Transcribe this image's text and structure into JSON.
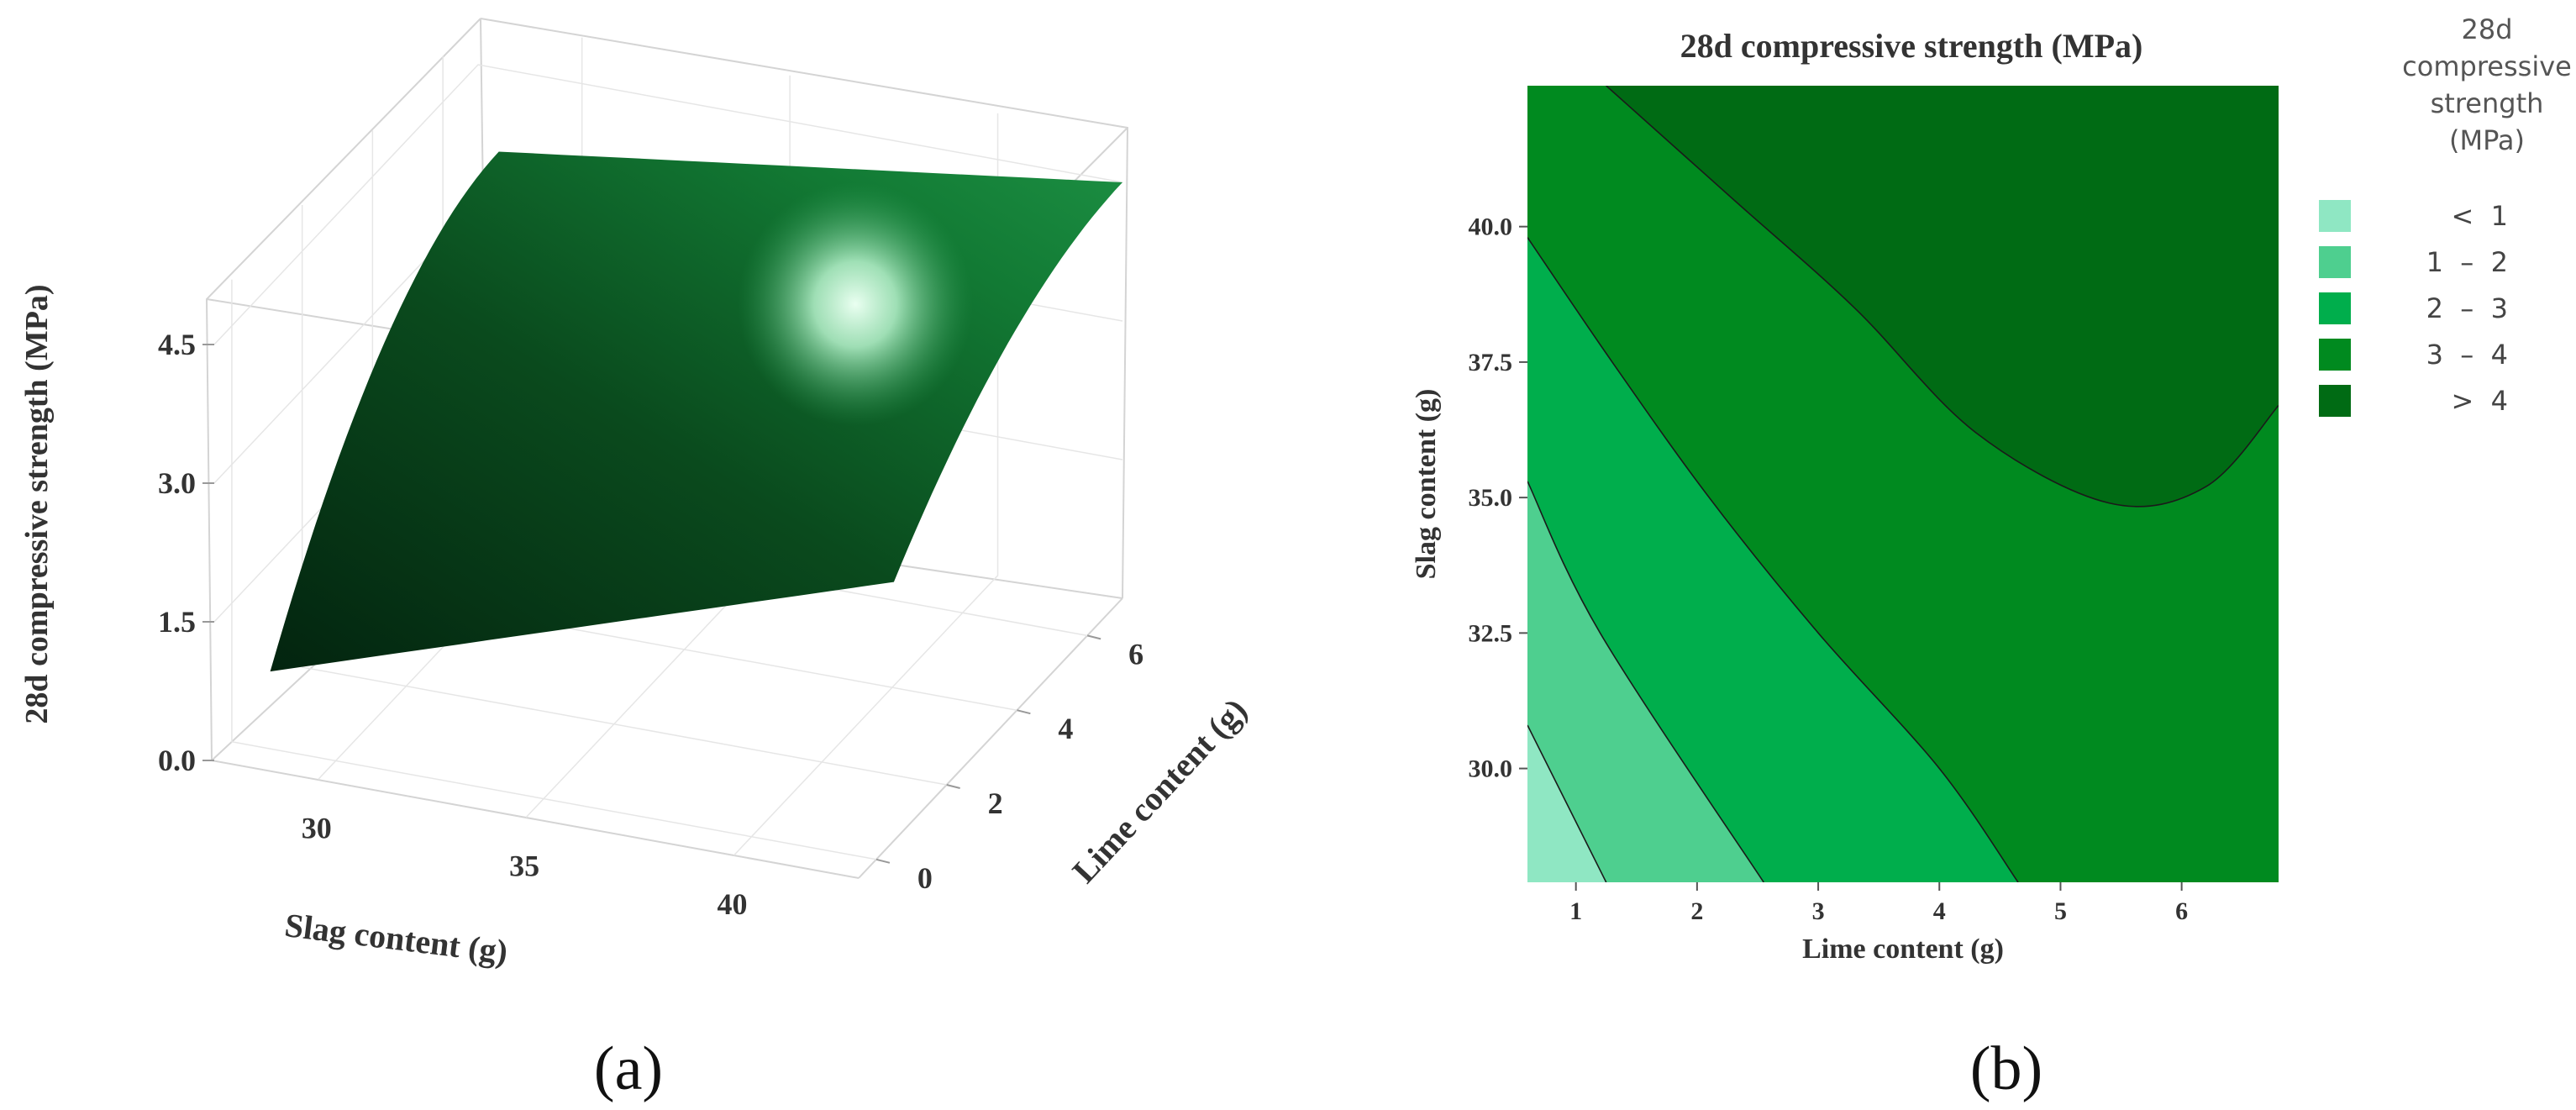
{
  "panel_labels": [
    "(a)",
    "(b)"
  ],
  "legend": {
    "title_lines": [
      "28d",
      "compressive",
      "strength",
      "(MPa)"
    ],
    "entries": [
      "<  1",
      "1  –  2",
      "2  –  3",
      "3  –  4",
      ">  4"
    ],
    "colors": [
      "#8fe7c3",
      "#4ecf8f",
      "#00ae4c",
      "#008a1f",
      "#006b14"
    ]
  },
  "chart_data": [
    {
      "type": "surface",
      "panel": "(a)",
      "xlabel": "Slag content (g)",
      "ylabel": "Lime content (g)",
      "zlabel": "28d compressive strength (MPa)",
      "x_ticks": [
        "30",
        "35",
        "40"
      ],
      "y_ticks": [
        "0",
        "2",
        "4",
        "6"
      ],
      "z_ticks": [
        "0.0",
        "1.5",
        "3.0",
        "4.5"
      ],
      "xlim": [
        27.5,
        43
      ],
      "ylim": [
        -0.5,
        7
      ],
      "zlim": [
        0,
        5
      ],
      "surface_color": "#0b5a23",
      "corner_values": [
        {
          "slag": 28,
          "lime": 0.5,
          "strength": 0.6
        },
        {
          "slag": 28,
          "lime": 7,
          "strength": 3.6
        },
        {
          "slag": 43,
          "lime": 0.5,
          "strength": 2.8
        },
        {
          "slag": 43,
          "lime": 7,
          "strength": 4.5
        }
      ]
    },
    {
      "type": "contour",
      "panel": "(b)",
      "title": "28d compressive strength (MPa)",
      "xlabel": "Lime content (g)",
      "ylabel": "Slag content (g)",
      "x_ticks": [
        "1",
        "2",
        "3",
        "4",
        "5",
        "6"
      ],
      "y_ticks": [
        "30.0",
        "32.5",
        "35.0",
        "37.5",
        "40.0"
      ],
      "xlim": [
        0.6,
        6.8
      ],
      "ylim": [
        27.9,
        42.6
      ],
      "levels": [
        1,
        2,
        3,
        4
      ],
      "contours": [
        {
          "level": 1,
          "points": [
            [
              0.6,
              30.8
            ],
            [
              1.25,
              27.9
            ]
          ]
        },
        {
          "level": 2,
          "points": [
            [
              0.6,
              35.3
            ],
            [
              1.2,
              32.5
            ],
            [
              2.55,
              27.9
            ]
          ]
        },
        {
          "level": 3,
          "points": [
            [
              0.6,
              39.8
            ],
            [
              1.3,
              37.5
            ],
            [
              2.1,
              35.0
            ],
            [
              3.0,
              32.5
            ],
            [
              4.0,
              30.0
            ],
            [
              4.65,
              27.9
            ]
          ]
        },
        {
          "level": 4,
          "points": [
            [
              1.25,
              42.6
            ],
            [
              2.3,
              40.5
            ],
            [
              3.3,
              38.5
            ],
            [
              4.3,
              36.2
            ],
            [
              5.4,
              34.9
            ],
            [
              6.2,
              35.2
            ],
            [
              6.8,
              36.7
            ]
          ]
        }
      ]
    }
  ]
}
